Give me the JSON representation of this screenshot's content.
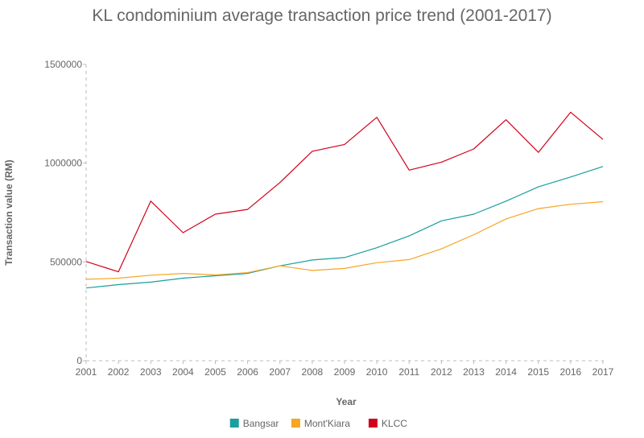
{
  "chart_data": {
    "type": "line",
    "title": "KL condominium average transaction price trend (2001-2017)",
    "xlabel": "Year",
    "ylabel": "Transaction value (RM)",
    "x": [
      "2001",
      "2002",
      "2003",
      "2004",
      "2005",
      "2006",
      "2007",
      "2008",
      "2009",
      "2010",
      "2011",
      "2012",
      "2013",
      "2014",
      "2015",
      "2016",
      "2017"
    ],
    "yticks": [
      "0",
      "500000",
      "1000000",
      "1500000"
    ],
    "ylim": [
      0,
      1500000
    ],
    "legend_position": "bottom",
    "grid": false,
    "series": [
      {
        "name": "Bangsar",
        "color": "#1a9e9e",
        "values": [
          368000,
          385000,
          398000,
          418000,
          430000,
          442000,
          480000,
          510000,
          522000,
          572000,
          632000,
          708000,
          742000,
          808000,
          880000,
          930000,
          983000
        ]
      },
      {
        "name": "Mont'Kiara",
        "color": "#f5a623",
        "values": [
          412000,
          418000,
          433000,
          442000,
          434000,
          446000,
          480000,
          457000,
          467000,
          496000,
          512000,
          566000,
          638000,
          718000,
          770000,
          792000,
          805000
        ]
      },
      {
        "name": "KLCC",
        "color": "#d0021b",
        "values": [
          502000,
          450000,
          808000,
          648000,
          742000,
          766000,
          902000,
          1060000,
          1095000,
          1232000,
          965000,
          1005000,
          1072000,
          1220000,
          1055000,
          1258000,
          1120000
        ]
      }
    ]
  }
}
